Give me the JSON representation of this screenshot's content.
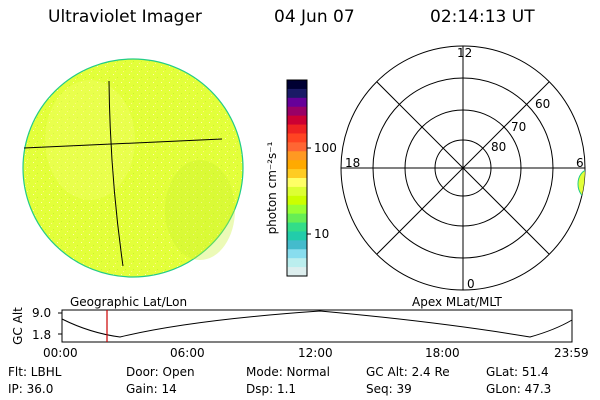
{
  "header": {
    "instrument": "Ultraviolet Imager",
    "date": "04 Jun 07",
    "time": "02:14:13 UT"
  },
  "colorbar": {
    "unit_label": "photon cm⁻²s⁻¹",
    "ticks": [
      "100",
      "10"
    ],
    "scale": "log",
    "colors": [
      "#000033",
      "#1a1a66",
      "#660099",
      "#990066",
      "#cc0033",
      "#ee2222",
      "#ff4422",
      "#ff6633",
      "#ff9922",
      "#ffaa00",
      "#ffcc22",
      "#ffff66",
      "#ddff33",
      "#ccff00",
      "#99ff33",
      "#66ee55",
      "#33dd88",
      "#22ccaa",
      "#44bbcc",
      "#88ddee",
      "#bbeeee",
      "#ddeeee"
    ]
  },
  "geo_map": {
    "caption": "Geographic Lat/Lon",
    "fill_color": "#e3ff3a"
  },
  "polar_plot": {
    "caption": "Apex MLat/MLT",
    "mlt_labels": [
      "12",
      "18",
      "6",
      "0"
    ],
    "lat_labels": [
      "60",
      "70",
      "80"
    ]
  },
  "altitude_plot": {
    "y_label": "GC Alt",
    "y_ticks": [
      "9.0",
      "1.8"
    ],
    "x_ticks": [
      "00:00",
      "06:00",
      "12:00",
      "18:00",
      "23:59"
    ],
    "cursor_color": "#cc0000"
  },
  "footer": {
    "row1": [
      {
        "key": "flt",
        "text": "Flt: LBHL"
      },
      {
        "key": "door",
        "text": "Door: Open"
      },
      {
        "key": "mode",
        "text": "Mode: Normal"
      },
      {
        "key": "gcalt",
        "text": "GC Alt: 2.4 Re"
      },
      {
        "key": "glat",
        "text": "GLat: 51.4"
      }
    ],
    "row2": [
      {
        "key": "ip",
        "text": "IP: 36.0"
      },
      {
        "key": "gain",
        "text": "Gain: 14"
      },
      {
        "key": "dsp",
        "text": "Dsp:    1.1"
      },
      {
        "key": "seq",
        "text": "Seq: 39"
      },
      {
        "key": "glon",
        "text": "GLon:  47.3"
      }
    ]
  }
}
